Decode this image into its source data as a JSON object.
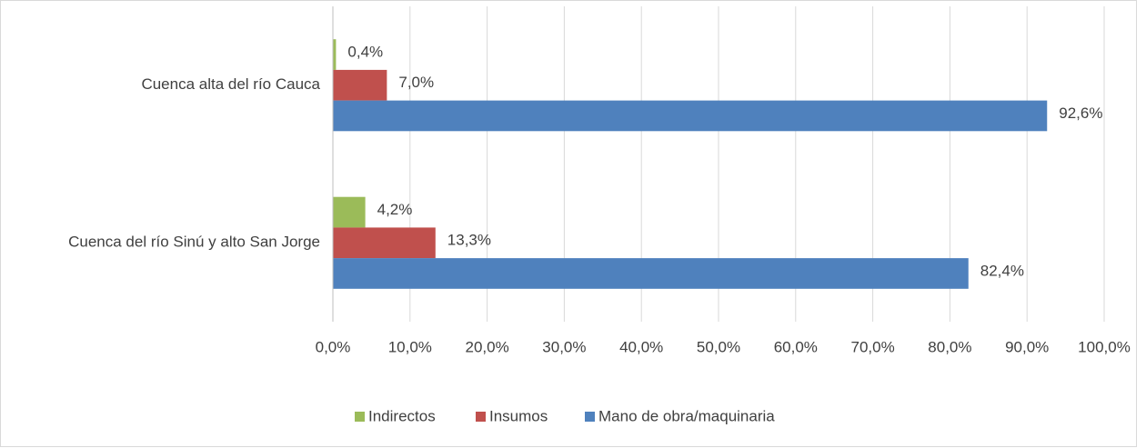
{
  "chart_data": {
    "type": "hbar",
    "categories": [
      "Cuenca alta del río Cauca",
      "Cuenca del río Sinú y alto San Jorge"
    ],
    "series": [
      {
        "name": "Indirectos",
        "color": "#9bbb59",
        "values": [
          0.4,
          4.2
        ],
        "value_labels": [
          "0,4%",
          "4,2%"
        ]
      },
      {
        "name": "Insumos",
        "color": "#c0504d",
        "values": [
          7.0,
          13.3
        ],
        "value_labels": [
          "7,0%",
          "13,3%"
        ]
      },
      {
        "name": "Mano de obra/maquinaria",
        "color": "#4f81bd",
        "values": [
          92.6,
          82.4
        ],
        "value_labels": [
          "92,6%",
          "82,4%"
        ]
      }
    ],
    "xlim": [
      0,
      100
    ],
    "xticks": [
      {
        "value": 0,
        "label": "0,0%"
      },
      {
        "value": 10,
        "label": "10,0%"
      },
      {
        "value": 20,
        "label": "20,0%"
      },
      {
        "value": 30,
        "label": "30,0%"
      },
      {
        "value": 40,
        "label": "40,0%"
      },
      {
        "value": 50,
        "label": "50,0%"
      },
      {
        "value": 60,
        "label": "60,0%"
      },
      {
        "value": 70,
        "label": "70,0%"
      },
      {
        "value": 80,
        "label": "80,0%"
      },
      {
        "value": 90,
        "label": "90,0%"
      },
      {
        "value": 100,
        "label": "100,0%"
      }
    ],
    "grid": true,
    "legend": "bottom"
  }
}
